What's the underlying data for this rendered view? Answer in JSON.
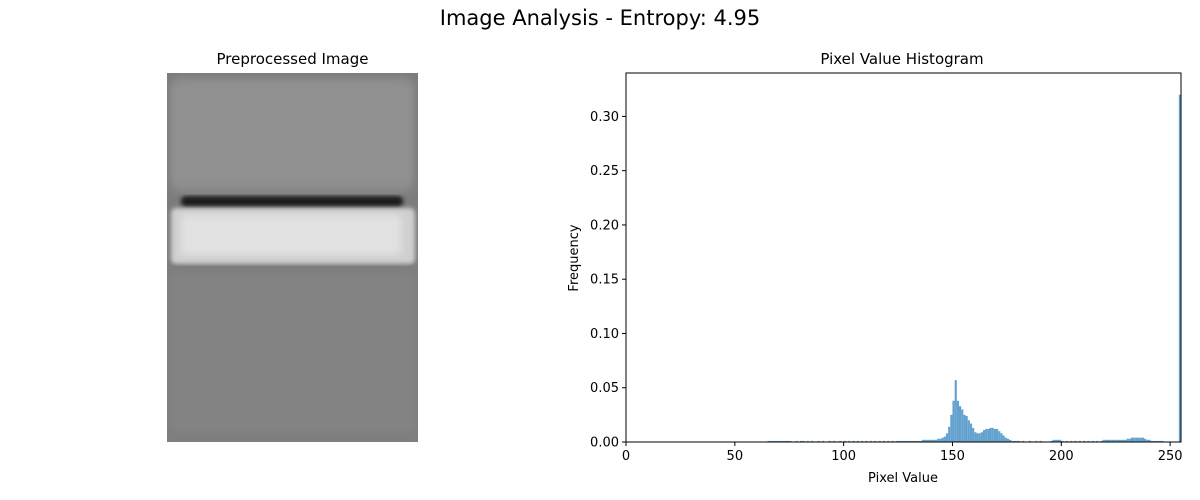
{
  "figure": {
    "suptitle": "Image Analysis - Entropy: 4.95"
  },
  "image_panel": {
    "title": "Preprocessed Image"
  },
  "chart_data": {
    "type": "bar",
    "title": "Pixel Value Histogram",
    "xlabel": "Pixel Value",
    "ylabel": "Frequency",
    "xlim": [
      0,
      255
    ],
    "ylim": [
      0,
      0.34
    ],
    "xticks": [
      0,
      50,
      100,
      150,
      200,
      250
    ],
    "yticks": [
      0.0,
      0.05,
      0.1,
      0.15,
      0.2,
      0.25,
      0.3
    ],
    "ytick_labels": [
      "0.00",
      "0.05",
      "0.10",
      "0.15",
      "0.20",
      "0.25",
      "0.30"
    ],
    "bin_width": 1,
    "color": "#5b9ccb",
    "bins": [
      [
        65,
        0.001
      ],
      [
        66,
        0.001
      ],
      [
        67,
        0.001
      ],
      [
        68,
        0.001
      ],
      [
        69,
        0.001
      ],
      [
        70,
        0.001
      ],
      [
        71,
        0.001
      ],
      [
        72,
        0.001
      ],
      [
        73,
        0.001
      ],
      [
        74,
        0.001
      ],
      [
        75,
        0.001
      ],
      [
        78,
        0.001
      ],
      [
        80,
        0.001
      ],
      [
        81,
        0.001
      ],
      [
        83,
        0.001
      ],
      [
        85,
        0.001
      ],
      [
        88,
        0.001
      ],
      [
        90,
        0.001
      ],
      [
        93,
        0.001
      ],
      [
        95,
        0.001
      ],
      [
        98,
        0.001
      ],
      [
        100,
        0.001
      ],
      [
        102,
        0.001
      ],
      [
        104,
        0.001
      ],
      [
        106,
        0.001
      ],
      [
        108,
        0.001
      ],
      [
        110,
        0.001
      ],
      [
        112,
        0.001
      ],
      [
        114,
        0.001
      ],
      [
        116,
        0.001
      ],
      [
        118,
        0.001
      ],
      [
        120,
        0.001
      ],
      [
        122,
        0.001
      ],
      [
        124,
        0.001
      ],
      [
        125,
        0.001
      ],
      [
        126,
        0.001
      ],
      [
        127,
        0.001
      ],
      [
        128,
        0.001
      ],
      [
        129,
        0.001
      ],
      [
        130,
        0.001
      ],
      [
        131,
        0.001
      ],
      [
        132,
        0.001
      ],
      [
        133,
        0.001
      ],
      [
        134,
        0.001
      ],
      [
        135,
        0.001
      ],
      [
        136,
        0.002
      ],
      [
        137,
        0.002
      ],
      [
        138,
        0.002
      ],
      [
        139,
        0.002
      ],
      [
        140,
        0.002
      ],
      [
        141,
        0.002
      ],
      [
        142,
        0.002
      ],
      [
        143,
        0.003
      ],
      [
        144,
        0.003
      ],
      [
        145,
        0.004
      ],
      [
        146,
        0.005
      ],
      [
        147,
        0.008
      ],
      [
        148,
        0.014
      ],
      [
        149,
        0.025
      ],
      [
        150,
        0.038
      ],
      [
        151,
        0.057
      ],
      [
        152,
        0.038
      ],
      [
        153,
        0.033
      ],
      [
        154,
        0.03
      ],
      [
        155,
        0.025
      ],
      [
        156,
        0.024
      ],
      [
        157,
        0.02
      ],
      [
        158,
        0.017
      ],
      [
        159,
        0.013
      ],
      [
        160,
        0.009
      ],
      [
        161,
        0.008
      ],
      [
        162,
        0.008
      ],
      [
        163,
        0.009
      ],
      [
        164,
        0.011
      ],
      [
        165,
        0.012
      ],
      [
        166,
        0.012
      ],
      [
        167,
        0.013
      ],
      [
        168,
        0.013
      ],
      [
        169,
        0.012
      ],
      [
        170,
        0.012
      ],
      [
        171,
        0.01
      ],
      [
        172,
        0.008
      ],
      [
        173,
        0.006
      ],
      [
        174,
        0.004
      ],
      [
        175,
        0.003
      ],
      [
        176,
        0.002
      ],
      [
        177,
        0.001
      ],
      [
        178,
        0.001
      ],
      [
        179,
        0.001
      ],
      [
        180,
        0.001
      ],
      [
        182,
        0.001
      ],
      [
        185,
        0.001
      ],
      [
        188,
        0.001
      ],
      [
        190,
        0.001
      ],
      [
        195,
        0.001
      ],
      [
        196,
        0.002
      ],
      [
        197,
        0.002
      ],
      [
        198,
        0.002
      ],
      [
        199,
        0.002
      ],
      [
        200,
        0.001
      ],
      [
        202,
        0.001
      ],
      [
        204,
        0.001
      ],
      [
        206,
        0.001
      ],
      [
        208,
        0.001
      ],
      [
        210,
        0.001
      ],
      [
        212,
        0.001
      ],
      [
        214,
        0.001
      ],
      [
        216,
        0.001
      ],
      [
        218,
        0.001
      ],
      [
        219,
        0.002
      ],
      [
        220,
        0.002
      ],
      [
        221,
        0.002
      ],
      [
        222,
        0.002
      ],
      [
        223,
        0.002
      ],
      [
        224,
        0.002
      ],
      [
        225,
        0.002
      ],
      [
        226,
        0.002
      ],
      [
        227,
        0.002
      ],
      [
        228,
        0.002
      ],
      [
        229,
        0.002
      ],
      [
        230,
        0.003
      ],
      [
        231,
        0.003
      ],
      [
        232,
        0.004
      ],
      [
        233,
        0.004
      ],
      [
        234,
        0.004
      ],
      [
        235,
        0.004
      ],
      [
        236,
        0.004
      ],
      [
        237,
        0.004
      ],
      [
        238,
        0.003
      ],
      [
        239,
        0.002
      ],
      [
        240,
        0.002
      ],
      [
        241,
        0.001
      ],
      [
        242,
        0.001
      ],
      [
        243,
        0.001
      ],
      [
        244,
        0.001
      ],
      [
        245,
        0.001
      ],
      [
        246,
        0.001
      ],
      [
        254,
        0.32
      ]
    ]
  }
}
